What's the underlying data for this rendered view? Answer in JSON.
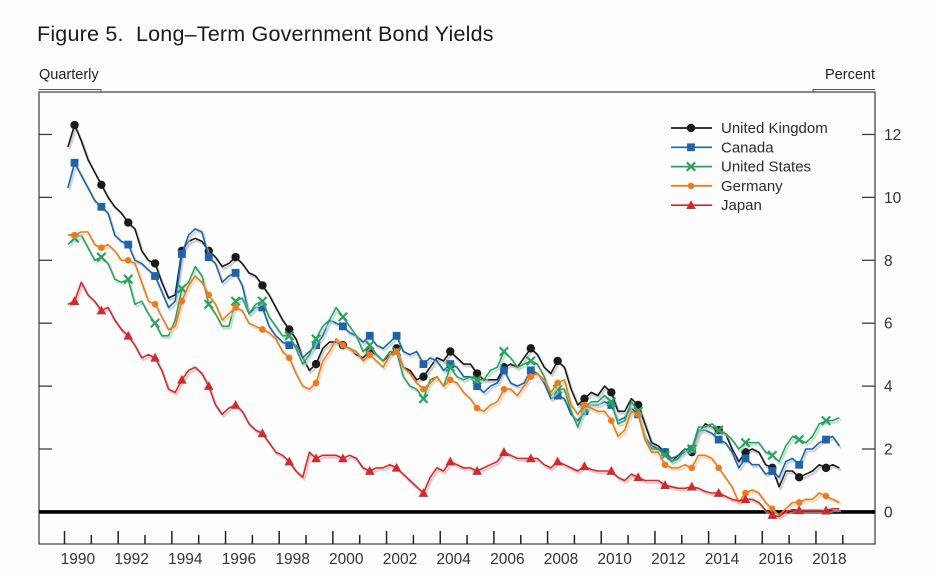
{
  "figure": {
    "title": "Figure 5.  Long–Term Government Bond Yields",
    "left_axis_label": "Quarterly",
    "right_axis_label": "Percent"
  },
  "chart_data": {
    "type": "line",
    "title": "Long–Term Government Bond Yields",
    "frequency": "Quarterly",
    "unit": "Percent",
    "legend_position": "top-right",
    "grid": false,
    "zero_line": true,
    "zero_value": 0,
    "xlim": [
      1989.05,
      2020.2
    ],
    "ylim": [
      -1.02,
      13.35
    ],
    "y_ticks": [
      0,
      2,
      4,
      6,
      8,
      10,
      12
    ],
    "x_label_years": [
      1990,
      1992,
      1994,
      1996,
      1998,
      2000,
      2002,
      2004,
      2006,
      2008,
      2010,
      2012,
      2014,
      2016,
      2018
    ],
    "x_start": 1990.125,
    "x_step": 0.25,
    "series": [
      {
        "name": "United Kingdom",
        "color": "#1a1a1a",
        "halo": "#b5b5b5",
        "marker": "circle",
        "values": [
          11.6,
          12.3,
          11.8,
          11.2,
          10.8,
          10.4,
          10.0,
          9.7,
          9.5,
          9.2,
          9.0,
          8.3,
          8.0,
          7.9,
          7.3,
          6.8,
          6.9,
          8.3,
          8.6,
          8.7,
          8.6,
          8.3,
          8.1,
          7.8,
          7.9,
          8.1,
          7.9,
          7.6,
          7.5,
          7.2,
          6.9,
          6.5,
          6.1,
          5.8,
          5.5,
          4.9,
          4.5,
          4.7,
          5.2,
          5.4,
          5.4,
          5.3,
          5.2,
          5.0,
          4.9,
          5.1,
          5.0,
          4.8,
          5.0,
          5.2,
          4.6,
          4.5,
          4.2,
          4.3,
          4.6,
          4.9,
          4.8,
          5.1,
          4.9,
          4.7,
          4.7,
          4.4,
          4.2,
          4.2,
          4.2,
          4.6,
          4.7,
          4.6,
          4.9,
          5.2,
          5.0,
          4.6,
          4.4,
          4.8,
          4.6,
          3.9,
          3.4,
          3.6,
          3.8,
          3.7,
          4.0,
          3.8,
          3.2,
          3.2,
          3.6,
          3.4,
          2.8,
          2.2,
          2.1,
          1.9,
          1.6,
          1.8,
          2.0,
          1.9,
          2.5,
          2.8,
          2.7,
          2.6,
          2.5,
          2.0,
          1.6,
          1.9,
          2.0,
          1.9,
          1.5,
          1.4,
          0.8,
          1.3,
          1.3,
          1.1,
          1.2,
          1.3,
          1.5,
          1.4,
          1.5,
          1.4
        ]
      },
      {
        "name": "Canada",
        "color": "#1f63a8",
        "halo": "#a9c6e4",
        "marker": "square",
        "values": [
          10.3,
          11.1,
          10.7,
          10.3,
          9.9,
          9.7,
          9.5,
          8.8,
          8.6,
          8.5,
          8.0,
          7.9,
          7.7,
          7.5,
          7.0,
          6.5,
          6.7,
          8.2,
          8.8,
          9.0,
          8.9,
          8.1,
          7.9,
          7.3,
          7.5,
          7.6,
          7.2,
          6.3,
          6.5,
          6.5,
          5.9,
          5.6,
          5.4,
          5.3,
          5.3,
          4.9,
          5.1,
          5.3,
          5.6,
          6.1,
          6.0,
          5.9,
          5.7,
          5.6,
          5.4,
          5.6,
          5.3,
          5.2,
          5.4,
          5.6,
          5.1,
          5.0,
          5.1,
          4.7,
          4.9,
          4.8,
          4.5,
          4.7,
          4.6,
          4.3,
          4.3,
          4.0,
          3.8,
          4.0,
          4.1,
          4.5,
          4.1,
          4.0,
          4.1,
          4.5,
          4.4,
          4.1,
          3.6,
          3.7,
          3.6,
          3.1,
          2.9,
          3.2,
          3.4,
          3.4,
          3.5,
          3.4,
          2.9,
          3.0,
          3.3,
          3.1,
          2.4,
          2.1,
          2.0,
          1.9,
          1.7,
          1.8,
          1.9,
          2.0,
          2.6,
          2.6,
          2.5,
          2.3,
          2.2,
          1.9,
          1.4,
          1.7,
          1.5,
          1.5,
          1.2,
          1.3,
          1.1,
          1.6,
          1.7,
          1.5,
          2.0,
          2.0,
          2.2,
          2.3,
          2.4,
          2.1
        ]
      },
      {
        "name": "United States",
        "color": "#2aa25d",
        "halo": "#a2dcbb",
        "marker": "x",
        "values": [
          8.5,
          8.7,
          8.8,
          8.4,
          8.0,
          8.1,
          7.9,
          7.4,
          7.3,
          7.4,
          6.6,
          6.7,
          6.3,
          6.0,
          5.6,
          5.6,
          6.1,
          7.1,
          7.3,
          7.8,
          7.5,
          6.6,
          6.3,
          5.9,
          5.9,
          6.7,
          6.8,
          6.3,
          6.6,
          6.7,
          6.2,
          5.9,
          5.6,
          5.6,
          5.2,
          4.7,
          5.0,
          5.5,
          5.9,
          6.1,
          6.5,
          6.2,
          5.9,
          5.6,
          5.1,
          5.3,
          5.0,
          4.8,
          5.1,
          5.1,
          4.3,
          4.0,
          3.9,
          3.6,
          4.2,
          4.3,
          4.0,
          4.6,
          4.3,
          4.2,
          4.3,
          4.2,
          4.2,
          4.5,
          4.6,
          5.1,
          4.9,
          4.6,
          4.7,
          4.8,
          4.7,
          4.3,
          3.7,
          3.9,
          3.9,
          3.2,
          2.7,
          3.3,
          3.5,
          3.5,
          3.7,
          3.5,
          2.8,
          2.9,
          3.5,
          3.2,
          2.4,
          2.0,
          2.0,
          1.8,
          1.6,
          1.7,
          2.0,
          2.0,
          2.7,
          2.7,
          2.8,
          2.6,
          2.5,
          2.3,
          2.0,
          2.2,
          2.2,
          2.2,
          1.9,
          1.8,
          1.6,
          2.1,
          2.4,
          2.3,
          2.2,
          2.4,
          2.8,
          2.9,
          2.9,
          3.0
        ]
      },
      {
        "name": "Germany",
        "color": "#ee7a1f",
        "halo": "#f7c99c",
        "marker": "dot",
        "values": [
          8.8,
          8.8,
          8.9,
          8.9,
          8.5,
          8.4,
          8.5,
          8.3,
          8.0,
          8.0,
          7.9,
          7.3,
          6.7,
          6.6,
          6.2,
          5.8,
          5.9,
          6.7,
          7.2,
          7.5,
          7.3,
          6.9,
          6.6,
          6.1,
          6.3,
          6.5,
          6.4,
          6.0,
          5.9,
          5.8,
          5.7,
          5.5,
          5.1,
          4.9,
          4.4,
          4.0,
          3.9,
          4.1,
          4.8,
          5.1,
          5.5,
          5.3,
          5.2,
          5.1,
          4.8,
          5.0,
          4.8,
          4.6,
          5.0,
          5.1,
          4.6,
          4.4,
          4.1,
          3.9,
          4.1,
          4.3,
          4.0,
          4.2,
          4.1,
          3.8,
          3.6,
          3.3,
          3.2,
          3.4,
          3.5,
          3.9,
          3.9,
          3.7,
          4.0,
          4.3,
          4.4,
          4.2,
          3.8,
          4.1,
          4.2,
          3.4,
          3.1,
          3.4,
          3.3,
          3.2,
          3.2,
          2.9,
          2.4,
          2.6,
          3.2,
          3.1,
          2.3,
          1.9,
          1.9,
          1.5,
          1.4,
          1.4,
          1.5,
          1.4,
          1.8,
          1.8,
          1.7,
          1.4,
          1.1,
          0.8,
          0.3,
          0.6,
          0.7,
          0.6,
          0.3,
          0.1,
          -0.1,
          0.1,
          0.3,
          0.3,
          0.4,
          0.4,
          0.6,
          0.5,
          0.4,
          0.3
        ]
      },
      {
        "name": "Japan",
        "color": "#d22a2c",
        "halo": "#eda8a4",
        "marker": "triangle",
        "values": [
          6.6,
          6.7,
          7.3,
          6.9,
          6.7,
          6.4,
          6.5,
          6.1,
          5.8,
          5.6,
          5.3,
          4.9,
          5.0,
          4.9,
          4.5,
          3.9,
          3.8,
          4.2,
          4.5,
          4.6,
          4.4,
          4.0,
          3.4,
          3.1,
          3.3,
          3.4,
          3.2,
          2.8,
          2.6,
          2.5,
          2.2,
          1.9,
          1.8,
          1.6,
          1.3,
          1.1,
          1.9,
          1.7,
          1.8,
          1.8,
          1.8,
          1.7,
          1.8,
          1.7,
          1.4,
          1.3,
          1.4,
          1.4,
          1.5,
          1.4,
          1.2,
          1.0,
          0.8,
          0.6,
          1.1,
          1.4,
          1.3,
          1.6,
          1.5,
          1.4,
          1.4,
          1.3,
          1.4,
          1.5,
          1.6,
          1.9,
          1.8,
          1.7,
          1.7,
          1.7,
          1.7,
          1.5,
          1.4,
          1.6,
          1.5,
          1.4,
          1.3,
          1.45,
          1.35,
          1.3,
          1.3,
          1.3,
          1.1,
          1.0,
          1.2,
          1.1,
          1.0,
          1.0,
          1.0,
          0.85,
          0.8,
          0.75,
          0.75,
          0.8,
          0.75,
          0.65,
          0.6,
          0.6,
          0.5,
          0.4,
          0.35,
          0.4,
          0.4,
          0.3,
          0.05,
          -0.1,
          -0.15,
          0.0,
          0.07,
          0.05,
          0.05,
          0.05,
          0.05,
          0.04,
          0.1,
          0.1
        ]
      }
    ]
  }
}
